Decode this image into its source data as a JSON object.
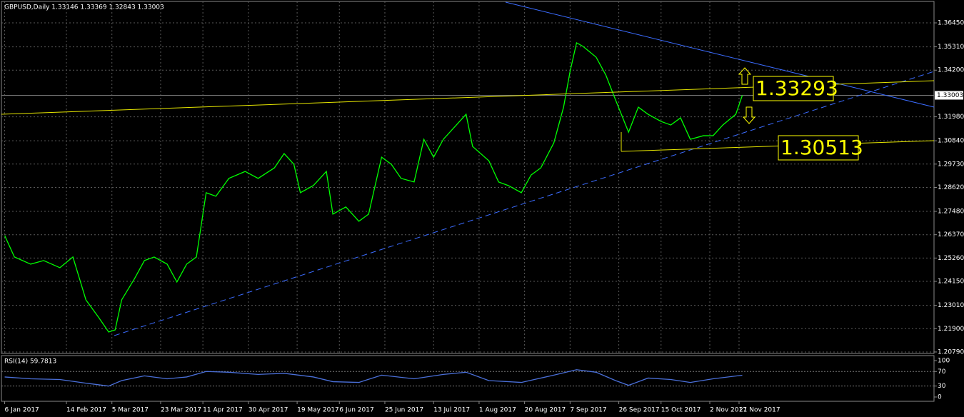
{
  "chart_data": [
    {
      "type": "line",
      "title": "GBPUSD,Daily  1.33146 1.33369 1.32843 1.33003",
      "color": "#00ff00",
      "grid": true,
      "x": [
        0,
        3,
        8,
        12,
        17,
        21,
        25,
        29,
        32,
        34,
        36,
        40,
        43,
        46,
        50,
        53,
        56,
        59,
        62,
        65,
        69,
        74,
        78,
        83,
        86,
        89,
        91,
        95,
        99,
        101,
        105,
        109,
        112,
        116,
        119,
        122,
        126,
        129,
        132,
        135,
        139,
        142,
        144,
        149,
        152,
        155,
        159,
        162,
        165,
        169,
        172,
        174,
        176,
        178,
        182,
        185,
        188,
        192,
        195,
        198,
        202,
        205,
        208,
        211,
        215,
        218,
        221,
        225,
        227
      ],
      "values": [
        1.2633,
        1.2531,
        1.2497,
        1.2514,
        1.248,
        1.2531,
        1.2327,
        1.2242,
        1.2174,
        1.2184,
        1.2327,
        1.2429,
        1.2514,
        1.2531,
        1.2497,
        1.2412,
        1.2497,
        1.2531,
        1.2837,
        1.282,
        1.2905,
        1.2938,
        1.2905,
        1.2955,
        1.3023,
        1.2972,
        1.2837,
        1.2871,
        1.2938,
        1.2735,
        1.2769,
        1.2701,
        1.2735,
        1.3006,
        1.2972,
        1.2905,
        1.2888,
        1.3091,
        1.3006,
        1.3091,
        1.3159,
        1.321,
        1.3057,
        1.2989,
        1.2888,
        1.2871,
        1.2837,
        1.2921,
        1.2955,
        1.3074,
        1.3244,
        1.3414,
        1.355,
        1.3533,
        1.3482,
        1.3397,
        1.3278,
        1.3125,
        1.3244,
        1.321,
        1.3176,
        1.3159,
        1.3193,
        1.3091,
        1.3108,
        1.3108,
        1.3159,
        1.321,
        1.33
      ],
      "xlim": [
        -1,
        286
      ],
      "xticks": [
        {
          "value": 0,
          "label": "6 Jan 2017"
        },
        {
          "value": 19,
          "label": "14 Feb 2017"
        },
        {
          "value": 33,
          "label": "5 Mar 2017"
        },
        {
          "value": 48,
          "label": "23 Mar 2017"
        },
        {
          "value": 61,
          "label": "11 Apr 2017"
        },
        {
          "value": 75,
          "label": "30 Apr 2017"
        },
        {
          "value": 90,
          "label": "19 May 2017"
        },
        {
          "value": 103,
          "label": "6 Jun 2017"
        },
        {
          "value": 117,
          "label": "25 Jun 2017"
        },
        {
          "value": 132,
          "label": "13 Jul 2017"
        },
        {
          "value": 146,
          "label": "1 Aug 2017"
        },
        {
          "value": 160,
          "label": "20 Aug 2017"
        },
        {
          "value": 174,
          "label": "7 Sep 2017"
        },
        {
          "value": 189,
          "label": "26 Sep 2017"
        },
        {
          "value": 202,
          "label": "15 Oct 2017"
        },
        {
          "value": 217,
          "label": "2 Nov 2017"
        },
        {
          "value": 226,
          "label": "21 Nov 2017"
        }
      ],
      "ylim": [
        1.2072,
        1.3747
      ],
      "yticks": [
        {
          "value": 1.2079,
          "label": "1.20790"
        },
        {
          "value": 1.219,
          "label": "1.21900"
        },
        {
          "value": 1.2301,
          "label": "1.23010"
        },
        {
          "value": 1.2415,
          "label": "1.24150"
        },
        {
          "value": 1.2526,
          "label": "1.25260"
        },
        {
          "value": 1.2637,
          "label": "1.26370"
        },
        {
          "value": 1.2748,
          "label": "1.27480"
        },
        {
          "value": 1.2862,
          "label": "1.28620"
        },
        {
          "value": 1.2973,
          "label": "1.29730"
        },
        {
          "value": 1.3084,
          "label": "1.30840"
        },
        {
          "value": 1.3198,
          "label": "1.31980"
        },
        {
          "value": 1.342,
          "label": "1.34200"
        },
        {
          "value": 1.3531,
          "label": "1.35310"
        },
        {
          "value": 1.3645,
          "label": "1.36450"
        }
      ],
      "current_price": {
        "value": 1.33003,
        "label": "1.33003"
      },
      "annotations": [
        "1.33293",
        "1.30513"
      ]
    },
    {
      "type": "line",
      "title": "RSI(14) 59.7813",
      "color": "#4a6fd8",
      "x": [
        0,
        8,
        17,
        25,
        32,
        36,
        43,
        50,
        56,
        62,
        69,
        78,
        86,
        95,
        101,
        109,
        116,
        126,
        135,
        142,
        149,
        159,
        169,
        176,
        182,
        188,
        192,
        198,
        205,
        211,
        218,
        227
      ],
      "values": [
        55,
        50,
        48,
        38,
        30,
        45,
        58,
        50,
        55,
        70,
        68,
        62,
        65,
        55,
        42,
        40,
        60,
        50,
        62,
        68,
        45,
        40,
        60,
        75,
        68,
        45,
        32,
        52,
        48,
        40,
        50,
        59.78
      ],
      "xlim": [
        -1,
        286
      ],
      "ylim": [
        -11.8,
        113.7
      ],
      "yticks": [
        100,
        70,
        30,
        0
      ],
      "levels": [
        70,
        30
      ]
    }
  ]
}
